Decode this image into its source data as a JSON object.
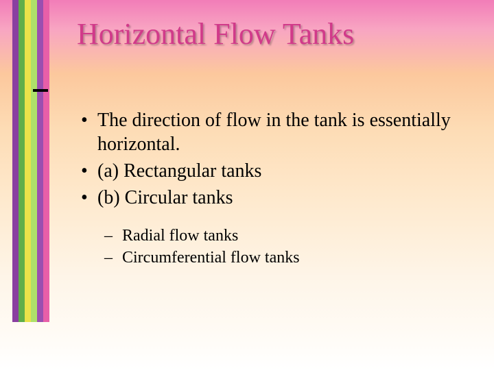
{
  "title": "Horizontal Flow Tanks",
  "bullets": {
    "b1": "The direction of flow in the tank is essentially horizontal.",
    "b2": "(a) Rectangular tanks",
    "b3": "(b) Circular tanks",
    "s1": "Radial flow tanks",
    "s2": "Circumferential flow tanks"
  },
  "sidebar_colors": {
    "c1": "#8a3fa0",
    "c2": "#5fae4a",
    "c3": "#e9e24a",
    "c4": "#aee06a",
    "c5": "#9a4fb0",
    "c6": "#e85fa8"
  },
  "title_color": "#d13a8a",
  "text_color": "#000000",
  "gradient": {
    "top": "#f27db8",
    "mid": "#fddcb5",
    "bottom": "#ffffff"
  },
  "fonts": {
    "family": "Times New Roman",
    "title_size_pt": 33,
    "body_size_pt": 21,
    "sub_size_pt": 18
  }
}
